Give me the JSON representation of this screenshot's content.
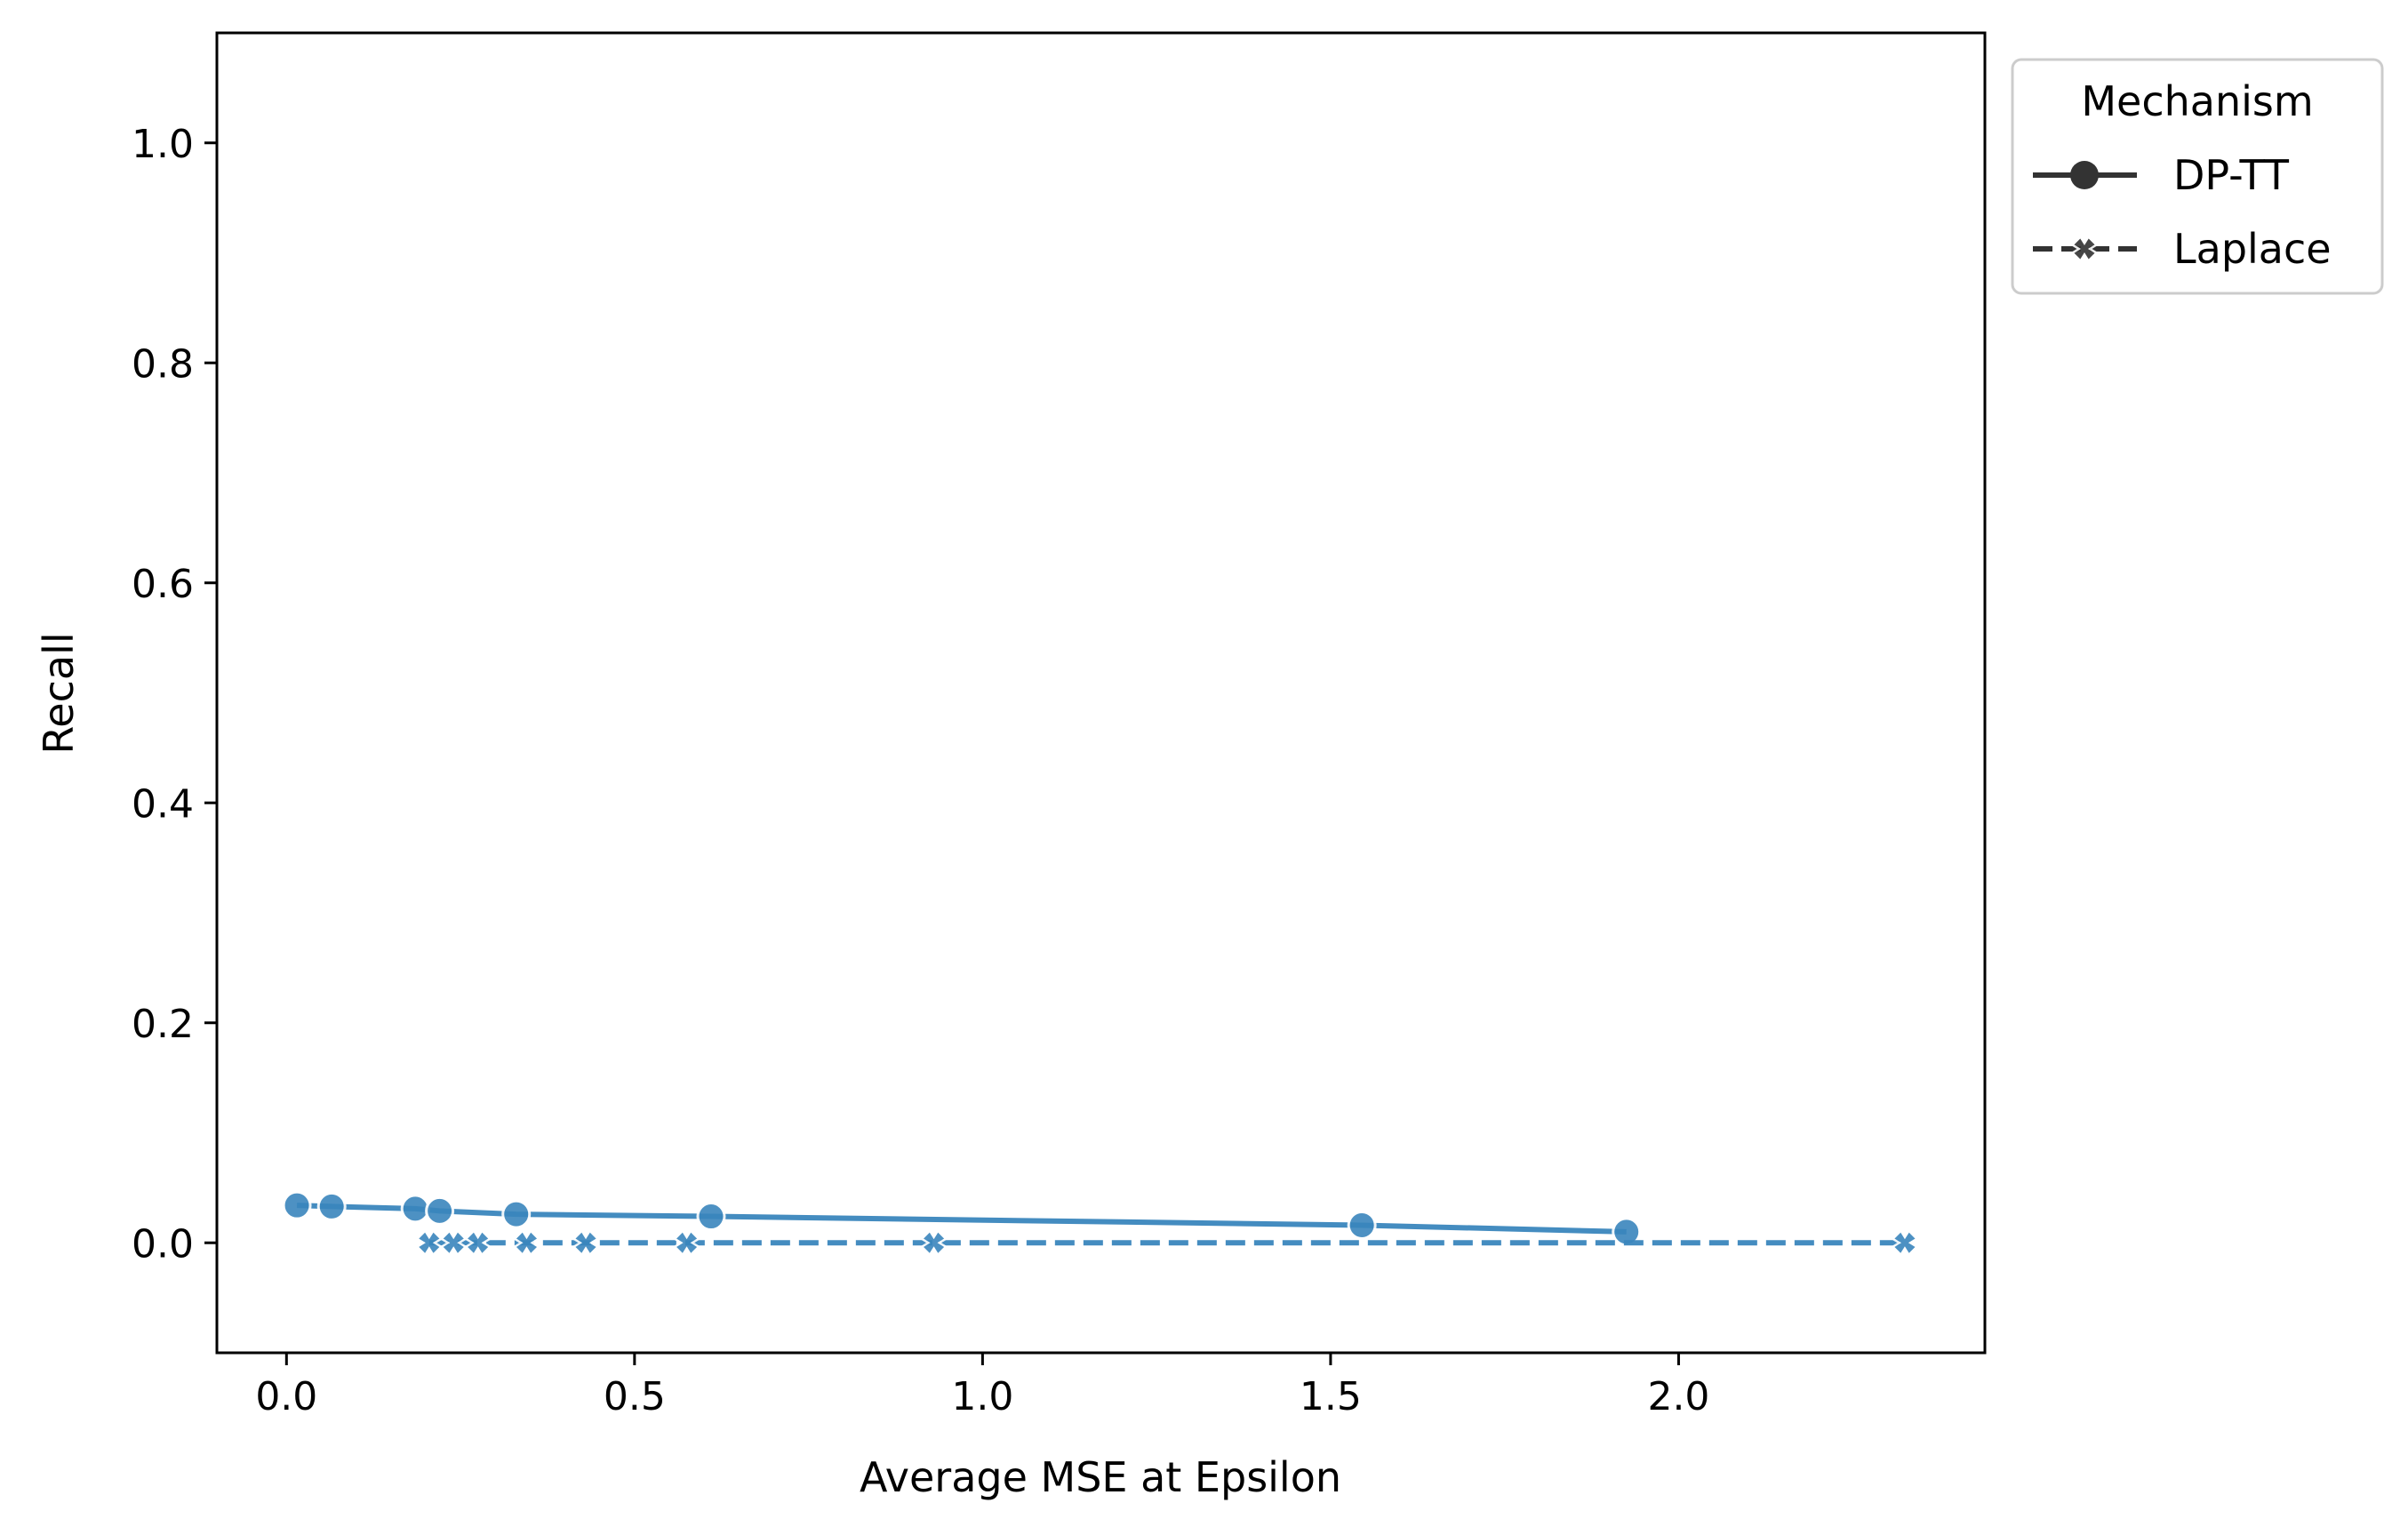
{
  "chart_data": {
    "type": "line",
    "title": "",
    "xlabel": "Average MSE at Epsilon",
    "ylabel": "Recall",
    "xlim": [
      -0.1,
      2.44
    ],
    "ylim": [
      -0.1,
      1.1
    ],
    "xticks": [
      0.0,
      0.5,
      1.0,
      1.5,
      2.0
    ],
    "xtick_labels": [
      "0.0",
      "0.5",
      "1.0",
      "1.5",
      "2.0"
    ],
    "yticks": [
      0.0,
      0.2,
      0.4,
      0.6,
      0.8,
      1.0
    ],
    "ytick_labels": [
      "0.0",
      "0.2",
      "0.4",
      "0.6",
      "0.8",
      "1.0"
    ],
    "grid": false,
    "legend": {
      "title": "Mechanism",
      "position": "outside-top-right"
    },
    "series_color": "#3a86bd",
    "legend_marker_color": "#333333",
    "series": [
      {
        "name": "DP-TT",
        "marker": "circle",
        "linestyle": "solid",
        "x": [
          0.015,
          0.065,
          0.185,
          0.22,
          0.33,
          0.61,
          1.545,
          1.925
        ],
        "y": [
          0.034,
          0.033,
          0.031,
          0.029,
          0.026,
          0.024,
          0.016,
          0.01
        ]
      },
      {
        "name": "Laplace",
        "marker": "x",
        "linestyle": "dashed",
        "x": [
          0.205,
          0.24,
          0.275,
          0.345,
          0.43,
          0.575,
          0.93,
          2.325
        ],
        "y": [
          0.0,
          0.0,
          0.0,
          0.0,
          0.0,
          0.0,
          0.0,
          0.0
        ]
      }
    ]
  }
}
